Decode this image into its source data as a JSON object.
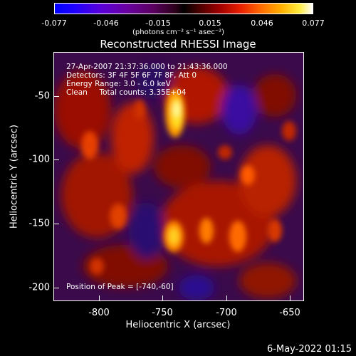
{
  "colorbar": {
    "ticks": [
      "-0.077",
      "-0.046",
      "-0.015",
      "0.015",
      "0.046",
      "0.077"
    ],
    "units": "(photons cm⁻² s⁻¹ asec⁻²)"
  },
  "title": "Reconstructed RHESSI Image",
  "info": {
    "line1": "27-Apr-2007 21:37:36.000 to 21:43:36.000",
    "line2": "Detectors: 3F 4F 5F 6F 7F 8F, Att 0",
    "line3": "Energy Range: 3.0 - 6.0 keV",
    "line4": "Clean     Total counts: 3.35E+04",
    "peak": "Position of Peak = [-740,-60]"
  },
  "axes": {
    "xlabel": "Heliocentric X (arcsec)",
    "ylabel": "Heliocentric Y (arcsec)",
    "xticks": [
      "-800",
      "-750",
      "-700",
      "-650"
    ],
    "yticks": [
      "-50",
      "-100",
      "-150",
      "-200"
    ]
  },
  "footer": {
    "date": "6-May-2022 01:15"
  }
}
